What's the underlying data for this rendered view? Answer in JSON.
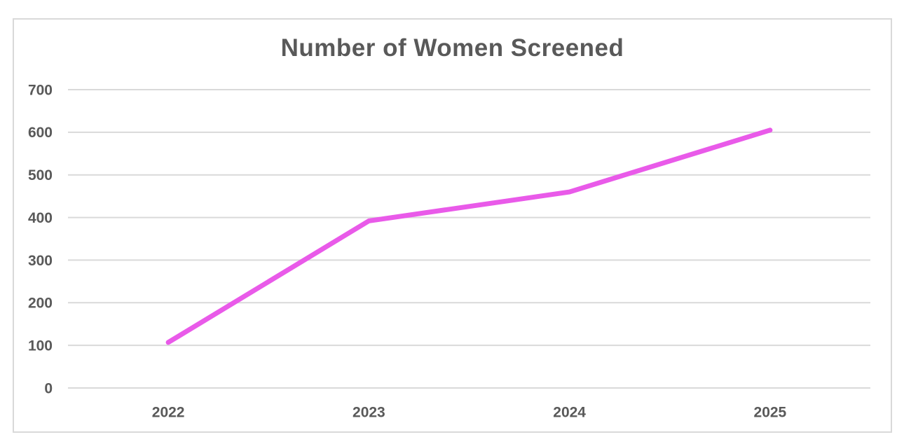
{
  "chart_data": {
    "type": "line",
    "title": "Number of Women Screened",
    "categories": [
      "2022",
      "2023",
      "2024",
      "2025"
    ],
    "series": [
      {
        "name": "Number of Women Screened",
        "values": [
          107,
          392,
          460,
          605
        ]
      }
    ],
    "xlabel": "",
    "ylabel": "",
    "ylim": [
      0,
      700
    ],
    "yticks": [
      0,
      100,
      200,
      300,
      400,
      500,
      600,
      700
    ],
    "grid": true,
    "legend_position": "none",
    "markers": false,
    "colors": {
      "line": "#E95AE9",
      "gridline": "#D9D9D9",
      "tick_label": "#595959",
      "title": "#595959",
      "card_border": "#D9D9D9",
      "background": "#FFFFFF"
    }
  }
}
